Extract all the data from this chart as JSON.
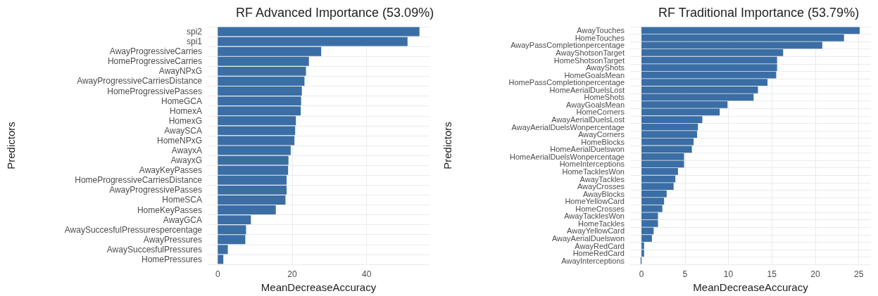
{
  "chart_data": [
    {
      "type": "bar",
      "orientation": "horizontal",
      "title": "RF Advanced Importance (53.09%)",
      "xlabel": "MeanDecreaseAccuracy",
      "ylabel": "Predictors",
      "categories": [
        "spi2",
        "spi1",
        "AwayProgressiveCarries",
        "HomeProgressiveCarries",
        "AwayNPxG",
        "AwayProgressiveCarriesDistance",
        "HomeProgressivePasses",
        "HomeGCA",
        "HomexA",
        "HomexG",
        "AwaySCA",
        "HomeNPxG",
        "AwayxA",
        "AwayxG",
        "AwayKeyPasses",
        "HomeProgressiveCarriesDistance",
        "AwayProgressivePasses",
        "HomeSCA",
        "HomeKeyPasses",
        "AwayGCA",
        "AwaySuccesfulPressurespercentage",
        "AwayPressures",
        "AwaySuccesfulPressures",
        "HomePressures"
      ],
      "values": [
        54.2,
        51.0,
        27.8,
        24.5,
        23.7,
        23.3,
        22.6,
        22.4,
        22.3,
        21.0,
        20.8,
        20.6,
        19.6,
        19.0,
        18.9,
        18.5,
        18.5,
        18.2,
        15.6,
        8.9,
        7.6,
        7.4,
        2.7,
        1.5
      ],
      "color": "#3a6ea5",
      "xlim": [
        -2.7,
        56.9
      ],
      "xticks": [
        0,
        20,
        40
      ],
      "grid": true
    },
    {
      "type": "bar",
      "orientation": "horizontal",
      "title": "RF Traditional Importance (53.79%)",
      "xlabel": "MeanDecreaseAccuracy",
      "ylabel": "Predictors",
      "categories": [
        "AwayTouches",
        "HomeTouches",
        "AwayPassCompletionpercentage",
        "AwayShotsonTarget",
        "HomeShotsonTarget",
        "AwayShots",
        "HomeGoalsMean",
        "HomePassCompletionpercentage",
        "HomeAerialDuelsLost",
        "HomeShots",
        "AwayGoalsMean",
        "HomeCorners",
        "AwayAerialDuelsLost",
        "AwayAerialDuelsWonpercentage",
        "AwayCorners",
        "HomeBlocks",
        "HomeAerialDuelswon",
        "HomeAerialDuelsWonpercentage",
        "HomeInterceptions",
        "HomeTacklesWon",
        "AwayTackles",
        "AwayCrosses",
        "AwayBlocks",
        "HomeYellowCard",
        "HomeCrosses",
        "AwayTacklesWon",
        "HomeTackles",
        "AwayYellowCard",
        "AwayAerialDuelswon",
        "AwayRedCard",
        "HomeRedCard",
        "AwayInterceptions"
      ],
      "values": [
        25.1,
        23.3,
        20.8,
        16.3,
        15.6,
        15.6,
        15.5,
        14.5,
        13.4,
        12.9,
        9.9,
        9.0,
        7.0,
        6.5,
        6.4,
        6.0,
        5.8,
        4.9,
        4.9,
        4.2,
        3.9,
        3.7,
        2.9,
        2.6,
        2.4,
        1.9,
        1.9,
        1.4,
        1.2,
        0.3,
        0.3,
        -0.1
      ],
      "color": "#3a6ea5",
      "xlim": [
        -1.3,
        26.4
      ],
      "xticks": [
        0,
        5,
        10,
        15,
        20,
        25
      ],
      "grid": true
    }
  ]
}
